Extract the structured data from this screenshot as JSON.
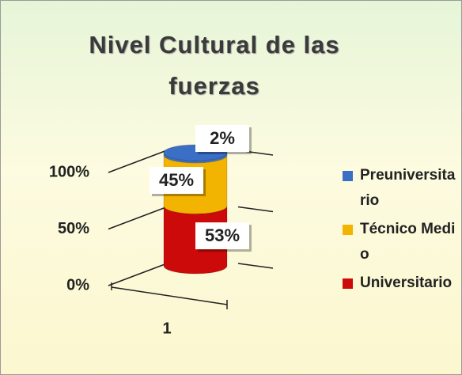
{
  "chart_data": {
    "type": "cylinder",
    "stacked": true,
    "title": "Nivel Cultural de las fuerzas",
    "categories": [
      "1"
    ],
    "series": [
      {
        "name": "Universitario",
        "color": "#cc0a0a",
        "values": [
          53
        ],
        "value_labels": [
          "53%"
        ]
      },
      {
        "name": "Técnico Medio",
        "color": "#f2b400",
        "values": [
          45
        ],
        "value_labels": [
          "45%"
        ]
      },
      {
        "name": "Preuniversitario",
        "color": "#3b6fc6",
        "values": [
          2
        ],
        "value_labels": [
          "2%"
        ]
      }
    ],
    "ylim": [
      0,
      100
    ],
    "yticks": [
      {
        "value": 0,
        "label": "0%"
      },
      {
        "value": 50,
        "label": "50%"
      },
      {
        "value": 100,
        "label": "100%"
      }
    ],
    "grid": true,
    "legend": "right"
  }
}
